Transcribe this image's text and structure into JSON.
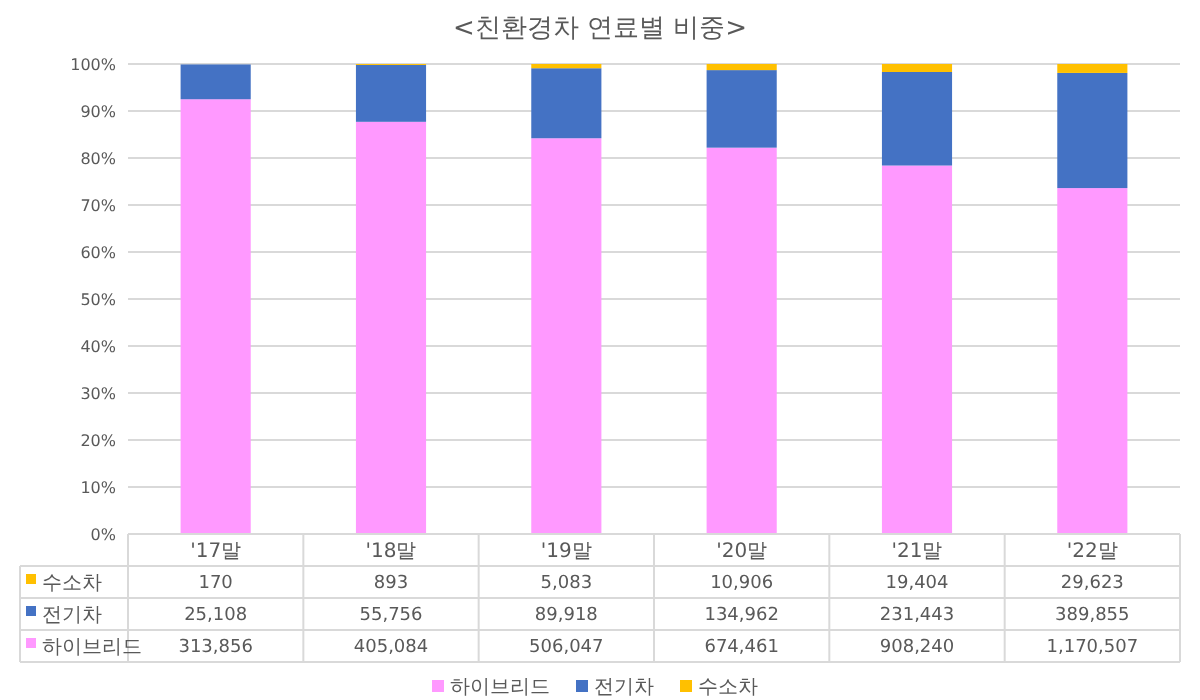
{
  "chart_data": {
    "type": "bar",
    "title": "<친환경차 연료별 비중>",
    "stacked": true,
    "categories": [
      "'17말",
      "'18말",
      "'19말",
      "'20말",
      "'21말",
      "'22말"
    ],
    "series": [
      {
        "name": "하이브리드",
        "color": "#ff99ff",
        "values": [
          92.5,
          87.7,
          84.2,
          82.2,
          78.4,
          73.6
        ]
      },
      {
        "name": "전기차",
        "color": "#4472c4",
        "values": [
          7.4,
          12.1,
          14.9,
          16.5,
          19.9,
          24.5
        ]
      },
      {
        "name": "수소차",
        "color": "#ffc000",
        "values": [
          null,
          0.2,
          0.9,
          1.3,
          1.7,
          1.9
        ]
      }
    ],
    "annotations": [
      "170",
      "893",
      "5,083",
      "10,906",
      "19,404",
      "29,623",
      "25,108",
      "55,756",
      "89,918",
      "134,962",
      "231,443",
      "389,855",
      "313,856",
      "405,084",
      "506,047",
      "674,461",
      "908,240",
      "1,170,507"
    ],
    "ylim": [
      0,
      100
    ],
    "yticks": [
      {
        "value": 0,
        "label": "0%"
      },
      {
        "value": 10,
        "label": "10%"
      },
      {
        "value": 20,
        "label": "20%"
      },
      {
        "value": 30,
        "label": "30%"
      },
      {
        "value": 40,
        "label": "40%"
      },
      {
        "value": 50,
        "label": "50%"
      },
      {
        "value": 60,
        "label": "60%"
      },
      {
        "value": 70,
        "label": "70%"
      },
      {
        "value": 80,
        "label": "80%"
      },
      {
        "value": 90,
        "label": "90%"
      },
      {
        "value": 100,
        "label": "100%"
      }
    ],
    "grid": "y",
    "legend": "bottom"
  }
}
